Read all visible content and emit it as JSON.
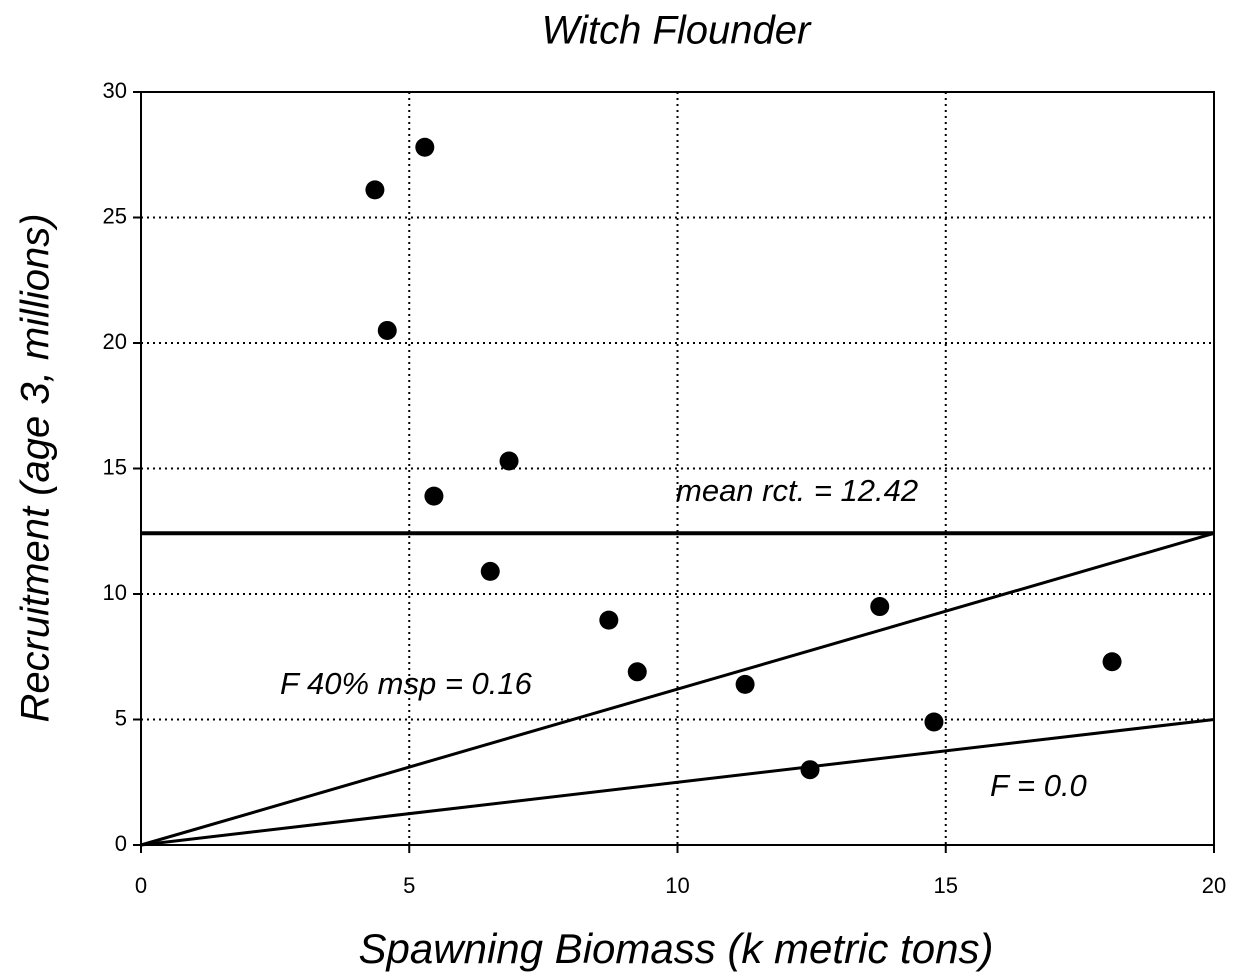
{
  "chart_data": {
    "type": "scatter",
    "title": "Witch Flounder",
    "x_label": "Spawning Biomass (k metric tons)",
    "y_label": "Recruitment (age 3, millions)",
    "series": [
      {
        "color": "#000000",
        "x": [
          4.36,
          5.29,
          4.59,
          6.86,
          5.46,
          6.51,
          8.72,
          9.25,
          11.26,
          13.77,
          14.78,
          12.47,
          18.1
        ],
        "values": [
          26.1,
          27.8,
          20.5,
          15.3,
          13.9,
          10.9,
          8.96,
          6.9,
          6.4,
          9.5,
          4.9,
          3.0,
          7.3
        ]
      }
    ],
    "lines": [
      {
        "label": "mean rct. = 12.42",
        "x": [
          0,
          20
        ],
        "values": [
          12.42,
          12.42
        ],
        "width": 4
      },
      {
        "label": "F 40% msp = 0.16",
        "x": [
          0,
          20
        ],
        "values": [
          0,
          12.42
        ],
        "width": 3
      },
      {
        "label": "F = 0.0",
        "x": [
          0,
          20
        ],
        "values": [
          0,
          5
        ],
        "width": 3
      }
    ],
    "xlim": [
      0,
      20
    ],
    "xticks": [
      0,
      5,
      10,
      15,
      20
    ],
    "ylim": [
      0,
      30
    ],
    "yticks": [
      0,
      5,
      10,
      15,
      20,
      25,
      30
    ],
    "grid": true
  }
}
